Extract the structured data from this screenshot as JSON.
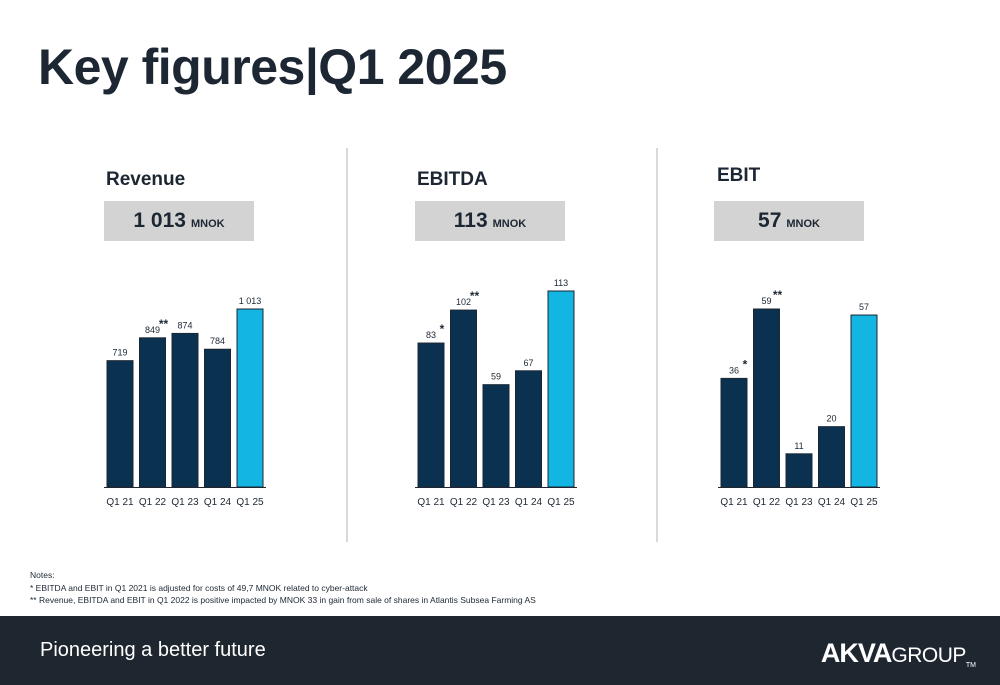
{
  "page": {
    "title": "Key figures|Q1 2025"
  },
  "chart_data": [
    {
      "type": "bar",
      "title": "Revenue",
      "kpi": {
        "value": "1 013",
        "unit": "MNOK"
      },
      "categories": [
        "Q1 21",
        "Q1 22",
        "Q1 23",
        "Q1 24",
        "Q1 25"
      ],
      "values": [
        719,
        849,
        874,
        784,
        1013
      ],
      "value_labels": [
        "719",
        "849",
        "874",
        "784",
        "1 013"
      ],
      "markers": [
        "",
        "**",
        "",
        "",
        ""
      ],
      "highlight_index": 4,
      "ylim": [
        0,
        1013
      ],
      "colors": {
        "bar": "#0a3150",
        "highlight": "#13b5e2"
      }
    },
    {
      "type": "bar",
      "title": "EBITDA",
      "kpi": {
        "value": "113",
        "unit": "MNOK"
      },
      "categories": [
        "Q1 21",
        "Q1 22",
        "Q1 23",
        "Q1 24",
        "Q1 25"
      ],
      "values": [
        83,
        102,
        59,
        67,
        113
      ],
      "value_labels": [
        "83",
        "102",
        "59",
        "67",
        "113"
      ],
      "markers": [
        "*",
        "**",
        "",
        "",
        ""
      ],
      "highlight_index": 4,
      "ylim": [
        0,
        113
      ],
      "colors": {
        "bar": "#0a3150",
        "highlight": "#13b5e2"
      }
    },
    {
      "type": "bar",
      "title": "EBIT",
      "kpi": {
        "value": "57",
        "unit": "MNOK"
      },
      "categories": [
        "Q1 21",
        "Q1 22",
        "Q1 23",
        "Q1 24",
        "Q1 25"
      ],
      "values": [
        36,
        59,
        11,
        20,
        57
      ],
      "value_labels": [
        "36",
        "59",
        "11",
        "20",
        "57"
      ],
      "markers": [
        "*",
        "**",
        "",
        "",
        ""
      ],
      "highlight_index": 4,
      "ylim": [
        0,
        59
      ],
      "colors": {
        "bar": "#0a3150",
        "highlight": "#13b5e2"
      }
    }
  ],
  "notes": {
    "heading": "Notes:",
    "lines": [
      "* EBITDA and EBIT in Q1 2021 is adjusted for costs of 49,7 MNOK related to cyber-attack",
      "** Revenue, EBITDA and EBIT in Q1 2022 is positive impacted by MNOK 33 in gain from sale of shares in Atlantis Subsea Farming AS"
    ]
  },
  "footer": {
    "tagline": "Pioneering a better future",
    "logo": {
      "bold": "AKVA",
      "light": "GROUP",
      "tm": "TM"
    }
  }
}
